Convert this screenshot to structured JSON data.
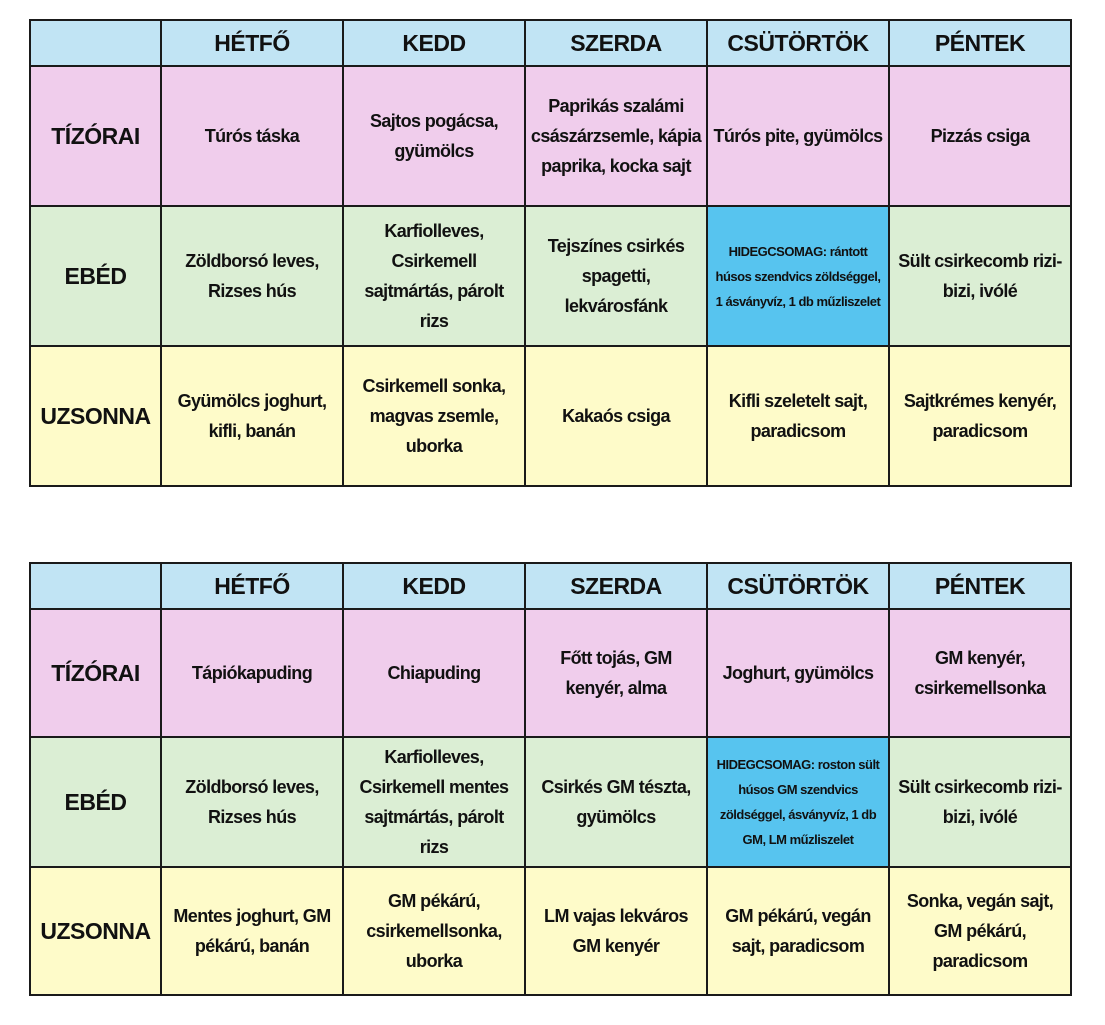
{
  "tables": [
    {
      "headers": [
        "",
        "HÉTFŐ",
        "KEDD",
        "SZERDA",
        "CSÜTÖRTÖK",
        "PÉNTEK"
      ],
      "rows": [
        {
          "label": "TÍZÓRAI",
          "cells": [
            "Túrós táska",
            "Sajtos pogácsa, gyümölcs",
            "Paprikás szalámi császárzsemle, kápia paprika, kocka sajt",
            "Túrós pite, gyümölcs",
            "Pizzás csiga"
          ]
        },
        {
          "label": "EBÉD",
          "cells": [
            "Zöldborsó leves, Rizses hús",
            "Karfiolleves, Csirkemell sajtmártás, párolt rizs",
            "Tejszínes csirkés spagetti, lekvárosfánk",
            "HIDEGCSOMAG: rántott húsos szendvics zöldséggel, 1 ásványvíz, 1 db műzliszelet",
            "Sült csirkecomb rizi-bizi, ivólé"
          ]
        },
        {
          "label": "UZSONNA",
          "cells": [
            "Gyümölcs joghurt, kifli, banán",
            "Csirkemell sonka, magvas zsemle, uborka",
            "Kakaós csiga",
            "Kifli szeletelt sajt, paradicsom",
            "Sajtkrémes kenyér, paradicsom"
          ]
        }
      ]
    },
    {
      "headers": [
        "",
        "HÉTFŐ",
        "KEDD",
        "SZERDA",
        "CSÜTÖRTÖK",
        "PÉNTEK"
      ],
      "rows": [
        {
          "label": "TÍZÓRAI",
          "cells": [
            "Tápiókapuding",
            "Chiapuding",
            "Főtt tojás, GM kenyér, alma",
            "Joghurt, gyümölcs",
            "GM kenyér, csirkemellsonka"
          ]
        },
        {
          "label": "EBÉD",
          "cells": [
            "Zöldborsó leves, Rizses hús",
            "Karfiolleves, Csirkemell mentes sajtmártás, párolt rizs",
            "Csirkés GM tészta, gyümölcs",
            "HIDEGCSOMAG: roston sült húsos GM szendvics zöldséggel, ásványvíz, 1 db GM, LM műzliszelet",
            "Sült csirkecomb rizi-bizi, ivólé"
          ]
        },
        {
          "label": "UZSONNA",
          "cells": [
            "Mentes joghurt, GM pékárú, banán",
            "GM pékárú, csirkemellsonka, uborka",
            "LM vajas lekváros GM kenyér",
            "GM pékárú, vegán sajt, paradicsom",
            "Sonka, vegán sajt, GM pékárú, paradicsom"
          ]
        }
      ]
    }
  ],
  "colors": {
    "header_bg": "#c1e4f4",
    "tizorai_bg": "#f0cdec",
    "ebed_bg": "#dbeed4",
    "uzsonna_bg": "#fefbc9",
    "highlight_bg": "#57c4ef",
    "border": "#1a1a1a"
  }
}
